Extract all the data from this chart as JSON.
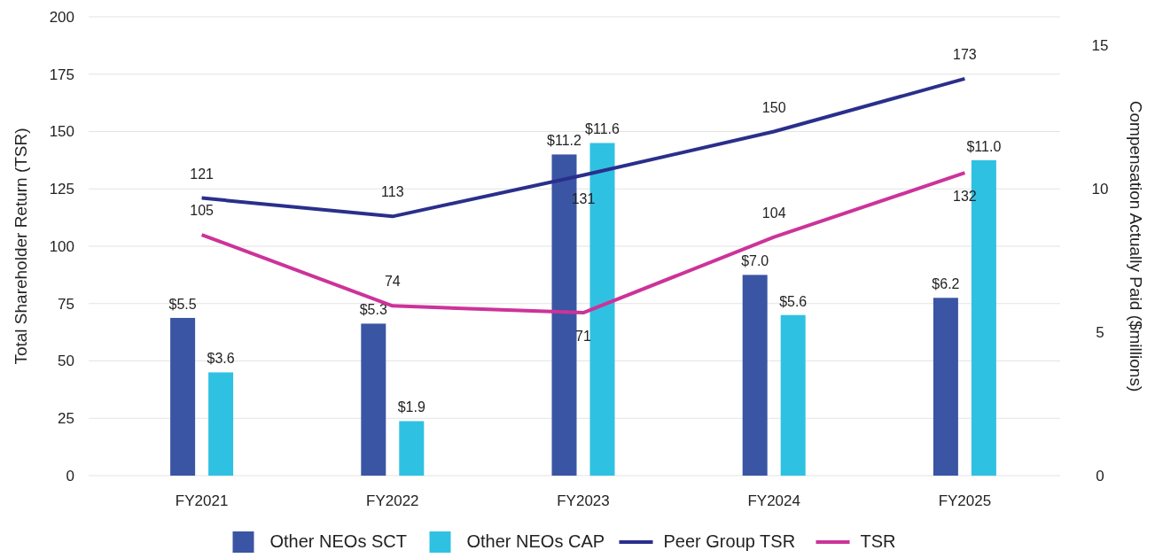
{
  "chart_data": {
    "type": "bar",
    "categories": [
      "FY2021",
      "FY2022",
      "FY2023",
      "FY2024",
      "FY2025"
    ],
    "ylabel": "Total Shareholder Return (TSR)",
    "y2label": "Compensation Actually Paid ($millions)",
    "ylim": [
      0,
      200
    ],
    "yticks": [
      0,
      25,
      50,
      75,
      100,
      125,
      150,
      175,
      200
    ],
    "y2lim": [
      0,
      16
    ],
    "y2ticks": [
      0,
      5,
      10,
      15
    ],
    "grid": "y",
    "legend": "bottom",
    "series": [
      {
        "name": "Other NEOs SCT",
        "axis": "y2",
        "color": "#3a55a4",
        "values": [
          5.5,
          5.3,
          11.2,
          7.0,
          6.2
        ],
        "value_labels": [
          "$5.5",
          "$5.3",
          "$11.2",
          "$7.0",
          "$6.2"
        ]
      },
      {
        "name": "Other NEOs CAP",
        "axis": "y2",
        "color": "#2fc1e2",
        "values": [
          3.6,
          1.9,
          11.6,
          5.6,
          11.0
        ],
        "value_labels": [
          "$3.6",
          "$1.9",
          "$11.6",
          "$5.6",
          "$11.0"
        ]
      },
      {
        "name": "Peer Group TSR",
        "type": "line",
        "color": "#2a2f8c",
        "values": [
          121,
          113,
          131,
          150,
          173
        ],
        "value_labels": [
          "121",
          "113",
          "131",
          "150",
          "173"
        ]
      },
      {
        "name": "TSR",
        "type": "line",
        "color": "#cc3399",
        "values": [
          105,
          74,
          71,
          104,
          132
        ],
        "value_labels": [
          "105",
          "74",
          "71",
          "104",
          "132"
        ]
      }
    ]
  }
}
